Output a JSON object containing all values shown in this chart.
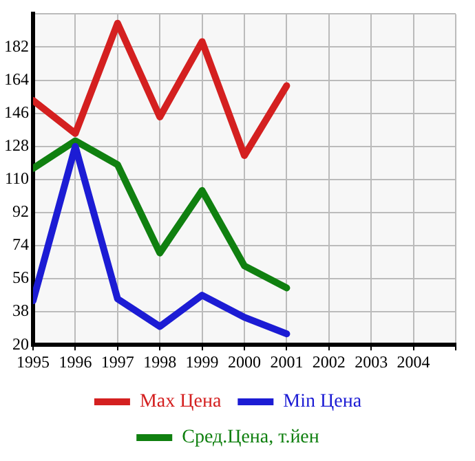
{
  "chart_data": {
    "type": "line",
    "x": [
      1995,
      1996,
      1997,
      1998,
      1999,
      2000,
      2001
    ],
    "series": [
      {
        "name": "Max Цена",
        "color": "#d42020",
        "values": [
          153,
          135,
          195,
          144,
          185,
          123,
          161
        ]
      },
      {
        "name": "Min Цена",
        "color": "#1c1cd4",
        "values": [
          44,
          128,
          45,
          30,
          47,
          35,
          26
        ]
      },
      {
        "name": "Сред.Цена, т.йен",
        "color": "#108010",
        "values": [
          116,
          131,
          118,
          70,
          104,
          63,
          51
        ]
      }
    ],
    "xlim": [
      1995,
      2005
    ],
    "xticks": [
      1995,
      1996,
      1997,
      1998,
      1999,
      2000,
      2001,
      2002,
      2003,
      2004,
      {
        "value": 2005,
        "label": null
      }
    ],
    "ylim": [
      20,
      200
    ],
    "yticks": [
      20,
      38,
      56,
      74,
      92,
      110,
      128,
      146,
      164,
      182,
      {
        "value": 200,
        "label": null
      }
    ],
    "grid": true,
    "legend": "bottom",
    "marker": "none",
    "line_style": "solid"
  }
}
